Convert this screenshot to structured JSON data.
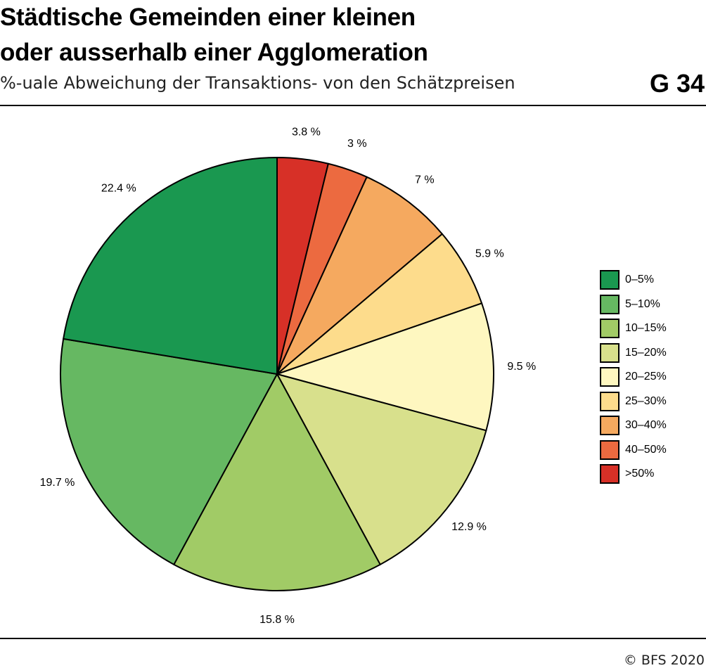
{
  "header": {
    "title_line1": "Städtische Gemeinden einer kleinen",
    "title_line2": "oder ausserhalb einer Agglomeration",
    "subtitle": "%-uale Abweichung der Transaktions- von den Schätzpreisen",
    "chart_id": "G 34"
  },
  "footer": {
    "copyright": "© BFS 2020"
  },
  "chart_data": {
    "type": "pie",
    "start_angle_deg": 0,
    "direction": "clockwise",
    "legend_position": "right",
    "slices": [
      {
        "name": ">50%",
        "value": 3.8,
        "label": "3.8 %",
        "color": "#d73027"
      },
      {
        "name": "40–50%",
        "value": 3.0,
        "label": "3 %",
        "color": "#ec6a40"
      },
      {
        "name": "30–40%",
        "value": 7.0,
        "label": "7 %",
        "color": "#f5a95f"
      },
      {
        "name": "25–30%",
        "value": 5.9,
        "label": "5.9 %",
        "color": "#fddc8c"
      },
      {
        "name": "20–25%",
        "value": 9.5,
        "label": "9.5 %",
        "color": "#fef7c0"
      },
      {
        "name": "15–20%",
        "value": 12.9,
        "label": "12.9 %",
        "color": "#d8e08c"
      },
      {
        "name": "10–15%",
        "value": 15.8,
        "label": "15.8 %",
        "color": "#a1cb66"
      },
      {
        "name": "5–10%",
        "value": 19.7,
        "label": "19.7 %",
        "color": "#66b862"
      },
      {
        "name": "0–5%",
        "value": 22.4,
        "label": "22.4 %",
        "color": "#1a9850"
      }
    ],
    "legend": [
      {
        "label": "0–5%",
        "color": "#1a9850"
      },
      {
        "label": "5–10%",
        "color": "#66b862"
      },
      {
        "label": "10–15%",
        "color": "#a1cb66"
      },
      {
        "label": "15–20%",
        "color": "#d8e08c"
      },
      {
        "label": "20–25%",
        "color": "#fef7c0"
      },
      {
        "label": "25–30%",
        "color": "#fddc8c"
      },
      {
        "label": "30–40%",
        "color": "#f5a95f"
      },
      {
        "label": "40–50%",
        "color": "#ec6a40"
      },
      {
        "label": ">50%",
        "color": "#d73027"
      }
    ]
  }
}
